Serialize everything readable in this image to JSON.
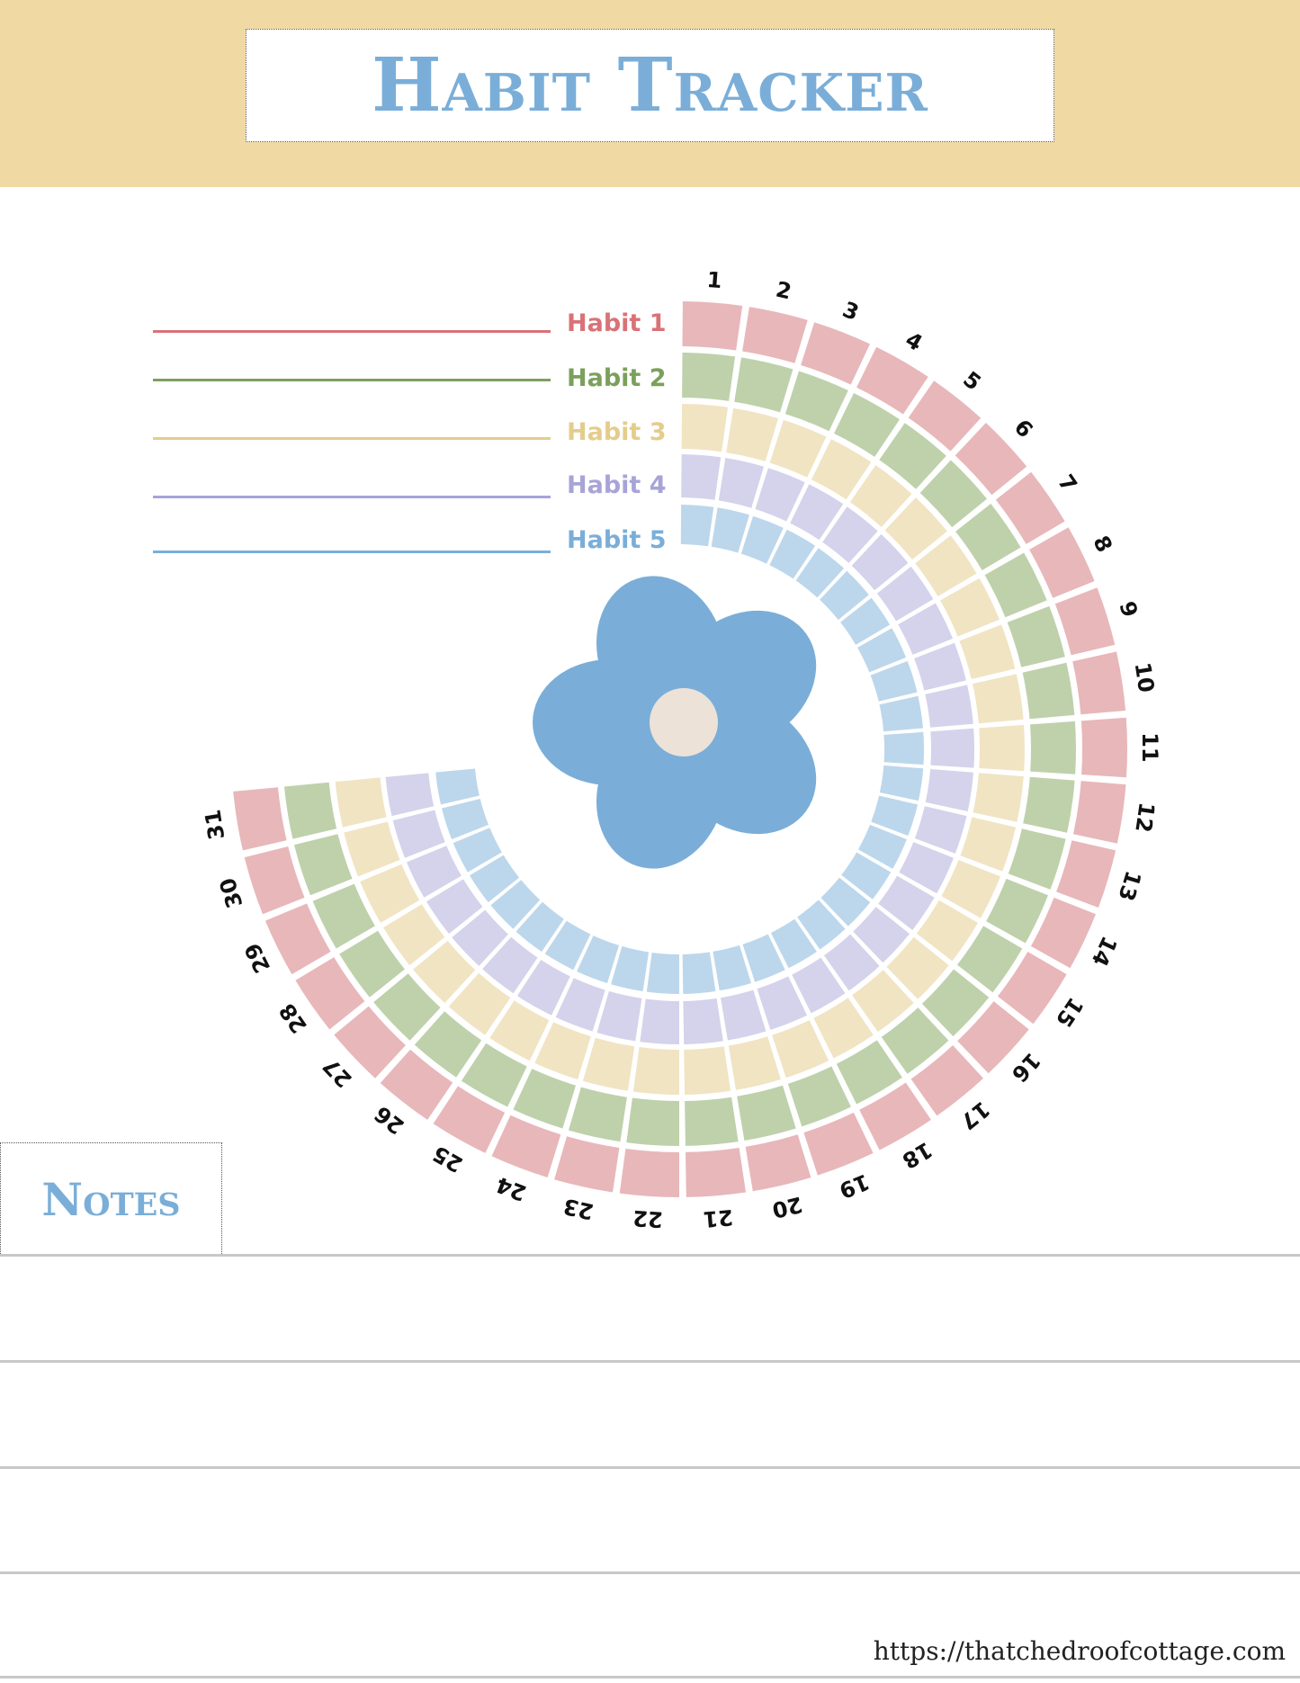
{
  "title": "Habit Tracker",
  "habits": [
    {
      "label": "Habit 1",
      "color": "#d97277",
      "cell_color": "#e8b7ba"
    },
    {
      "label": "Habit 2",
      "color": "#7ba05b",
      "cell_color": "#bed1ab"
    },
    {
      "label": "Habit 3",
      "color": "#e4cc8c",
      "cell_color": "#f1e4c3"
    },
    {
      "label": "Habit 4",
      "color": "#a7a4d8",
      "cell_color": "#d5d2eb"
    },
    {
      "label": "Habit 5",
      "color": "#7aaed8",
      "cell_color": "#bcd7ec"
    }
  ],
  "days": [
    "1",
    "2",
    "3",
    "4",
    "5",
    "6",
    "7",
    "8",
    "9",
    "10",
    "11",
    "12",
    "13",
    "14",
    "15",
    "16",
    "17",
    "18",
    "19",
    "20",
    "21",
    "22",
    "23",
    "24",
    "25",
    "26",
    "27",
    "28",
    "29",
    "30",
    "31"
  ],
  "flower": {
    "petal_color": "#7aaed8",
    "center_color": "#ece2d8"
  },
  "notes": {
    "label": "Notes"
  },
  "footer": {
    "url": "https://thatchedroofcottage.com"
  },
  "colors": {
    "header_band": "#f0d9a3",
    "title_text": "#7aaed8",
    "note_lines": "#c8c8c8"
  }
}
